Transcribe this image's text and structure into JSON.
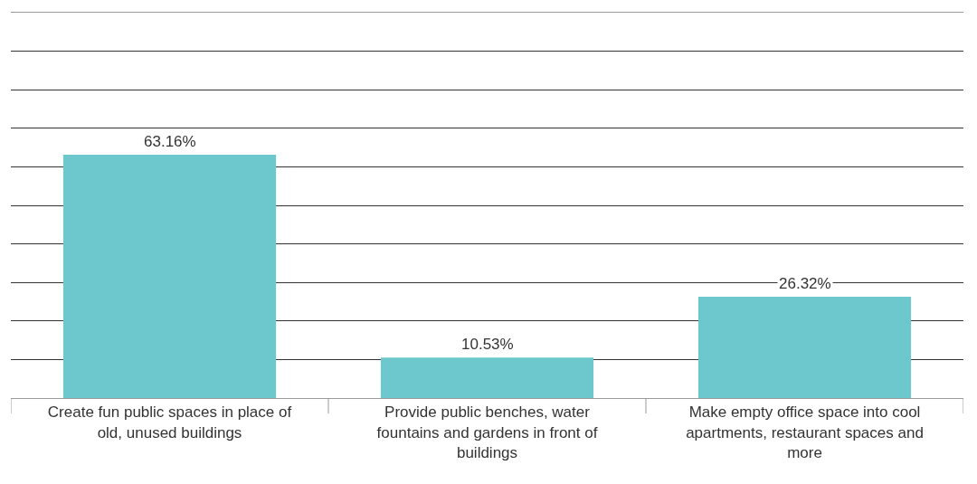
{
  "chart_data": {
    "type": "bar",
    "categories": [
      "Create fun public spaces in place of old, unused buildings",
      "Provide public benches, water fountains and gardens in front of buildings",
      "Make empty office space into cool apartments, restaurant spaces and more"
    ],
    "values": [
      63.16,
      10.53,
      26.32
    ],
    "value_labels": [
      "63.16%",
      "10.53%",
      "26.32%"
    ],
    "color": "#6cc8cc",
    "ylim": [
      0,
      100
    ],
    "yticks": [
      {
        "value": 0,
        "label": null
      },
      {
        "value": 10,
        "label": null
      },
      {
        "value": 20,
        "label": null
      },
      {
        "value": 30,
        "label": null
      },
      {
        "value": 40,
        "label": null
      },
      {
        "value": 50,
        "label": null
      },
      {
        "value": 60,
        "label": null
      },
      {
        "value": 70,
        "label": null
      },
      {
        "value": 80,
        "label": null
      },
      {
        "value": 90,
        "label": null
      },
      {
        "value": 100,
        "label": null
      }
    ],
    "grid": "y",
    "tick_labels": "x"
  }
}
